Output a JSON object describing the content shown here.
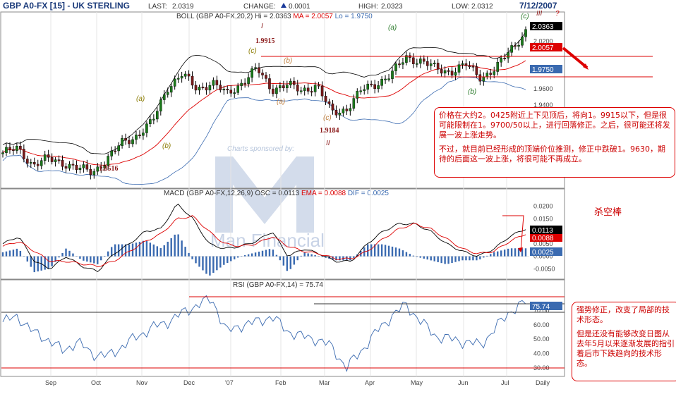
{
  "header": {
    "title": "GBP A0-FX [15] - UK STERLING",
    "last_label": "LAST:",
    "last": "2.0319",
    "change_label": "CHANGE:",
    "change": "0.0001",
    "high_label": "HIGH:",
    "high": "2.0323",
    "low_label": "LOW:",
    "low": "2.0312",
    "date": "7/12/2007"
  },
  "watermark": {
    "sponsor": "Charts sponsored by:",
    "brand": "Man Financial"
  },
  "panels": {
    "price": {
      "legend_prefix": "BOLL (GBP A0-FX,20,2)",
      "hi_label": "Hi = 2.0363",
      "ma_label": "MA = 2.0057",
      "lo_label": "Lo = 1.9750",
      "last_tag": "2.0363",
      "ma_tag": "2.0057",
      "lo_tag": "1.9750"
    },
    "macd": {
      "legend_prefix": "MACD (GBP A0-FX,12,26,9)",
      "osc_label": "OSC = 0.0113",
      "ema_label": "EMA = 0.0088",
      "dif_label": "DIF = 0.0025",
      "osc_tag": "0.0113",
      "ema_tag": "0.0088",
      "dif_tag": "0.0025"
    },
    "rsi": {
      "legend": "RSI (GBP A0-FX,14) = 75.74",
      "tag": "75.74"
    }
  },
  "annotations": {
    "waves": [
      {
        "text": "I",
        "color": "#8b1a1a"
      },
      {
        "text": "II",
        "color": "#8b1a1a"
      },
      {
        "text": "III",
        "color": "#8b1a1a"
      },
      {
        "text": "?",
        "color": "#c00"
      },
      {
        "text": "(a)",
        "color": "#8a7a00"
      },
      {
        "text": "(b)",
        "color": "#8a7a00"
      },
      {
        "text": "(c)",
        "color": "#8a7a00"
      },
      {
        "text": "(a)",
        "color": "#c08040"
      },
      {
        "text": "(b)",
        "color": "#c08040"
      },
      {
        "text": "(c)",
        "color": "#c08040"
      },
      {
        "text": "(a)",
        "color": "#2a7a2a"
      },
      {
        "text": "(b)",
        "color": "#2a7a2a"
      },
      {
        "text": "(c)",
        "color": "#2a7a2a"
      }
    ],
    "levels": [
      "1.8516",
      "1.9915",
      "1.9184"
    ],
    "note_main_p1": "价格在大约2。0425附近上下见顶后，将向1。9915以下，但是很可能限制在1。9700/50以上，进行回落修正。之后，很可能还将发展一波上涨走势。",
    "note_main_p2": "不过，就目前已经形成的顶端价位推测，修正中跌破1。9630，期待的后面这一波上涨，将很可能不再成立。",
    "kill_bar": "杀空棒",
    "note_rsi_p1": "强势修正，改变了局部的技术形态。",
    "note_rsi_p2": "但是还没有能够改变日图从去年5月以来逐渐发展的指引着后市下跌趋向的技术形态。"
  },
  "chart_data": [
    {
      "type": "candlestick",
      "title": "BOLL (GBP A0-FX,20,2)",
      "x_ticks": [
        "Sep",
        "Oct",
        "Nov",
        "Dec",
        "'07",
        "Feb",
        "Mar",
        "Apr",
        "May",
        "Jun",
        "Jul",
        "Daily"
      ],
      "y_ticks": [
        1.94,
        1.96,
        2.02
      ],
      "ylim": [
        1.84,
        2.045
      ],
      "close_path": [
        {
          "x": "Sep-01",
          "y": 1.88
        },
        {
          "x": "Sep-10",
          "y": 1.885
        },
        {
          "x": "Sep-18",
          "y": 1.865
        },
        {
          "x": "Sep-25",
          "y": 1.872
        },
        {
          "x": "Oct-03",
          "y": 1.868
        },
        {
          "x": "Oct-11",
          "y": 1.86
        },
        {
          "x": "Oct-18",
          "y": 1.856
        },
        {
          "x": "Oct-25",
          "y": 1.872
        },
        {
          "x": "Nov-01",
          "y": 1.893
        },
        {
          "x": "Nov-10",
          "y": 1.902
        },
        {
          "x": "Nov-20",
          "y": 1.918
        },
        {
          "x": "Nov-29",
          "y": 1.962
        },
        {
          "x": "Dec-05",
          "y": 1.978
        },
        {
          "x": "Dec-12",
          "y": 1.96
        },
        {
          "x": "Dec-22",
          "y": 1.968
        },
        {
          "x": "Jan-02",
          "y": 1.953
        },
        {
          "x": "Jan-10",
          "y": 1.968
        },
        {
          "x": "Jan-18",
          "y": 1.985
        },
        {
          "x": "Jan-26",
          "y": 1.96
        },
        {
          "x": "Feb-05",
          "y": 1.965
        },
        {
          "x": "Feb-15",
          "y": 1.958
        },
        {
          "x": "Feb-26",
          "y": 1.965
        },
        {
          "x": "Mar-05",
          "y": 1.93
        },
        {
          "x": "Mar-14",
          "y": 1.935
        },
        {
          "x": "Mar-26",
          "y": 1.958
        },
        {
          "x": "Apr-05",
          "y": 1.967
        },
        {
          "x": "Apr-16",
          "y": 1.978
        },
        {
          "x": "Apr-24",
          "y": 2.0
        },
        {
          "x": "May-03",
          "y": 1.995
        },
        {
          "x": "May-15",
          "y": 1.985
        },
        {
          "x": "May-25",
          "y": 1.982
        },
        {
          "x": "Jun-05",
          "y": 1.99
        },
        {
          "x": "Jun-14",
          "y": 1.975
        },
        {
          "x": "Jun-22",
          "y": 1.985
        },
        {
          "x": "Jul-02",
          "y": 2.01
        },
        {
          "x": "Jul-12",
          "y": 2.032
        }
      ],
      "series": [
        {
          "name": "Hi",
          "last": 2.0363
        },
        {
          "name": "MA",
          "last": 2.0057
        },
        {
          "name": "Lo",
          "last": 1.975
        }
      ],
      "marked_levels": [
        1.8516,
        1.9915,
        1.9184
      ]
    },
    {
      "type": "line",
      "title": "MACD (GBP A0-FX,12,26,9)",
      "y_ticks": [
        0.02,
        0.015,
        0.005,
        0.0,
        -0.005
      ],
      "ylim": [
        -0.008,
        0.023
      ],
      "series": [
        {
          "name": "OSC",
          "last": 0.0113,
          "values": [
            0.005,
            0.008,
            -0.002,
            -0.005,
            0.0,
            -0.004,
            -0.006,
            0.001,
            0.005,
            0.01,
            0.011,
            0.021,
            0.015,
            0.005,
            0.003,
            0.004,
            0.006,
            0.01,
            0.0,
            0.003,
            0.001,
            -0.002,
            -0.002,
            0.005,
            0.01,
            0.013,
            0.013,
            0.01,
            0.005,
            0.002,
            0.0,
            0.003,
            0.008,
            0.011
          ]
        },
        {
          "name": "EMA",
          "last": 0.0088,
          "values": [
            0.004,
            0.006,
            0.002,
            -0.002,
            -0.002,
            -0.003,
            -0.004,
            -0.002,
            0.002,
            0.006,
            0.009,
            0.015,
            0.016,
            0.01,
            0.005,
            0.004,
            0.005,
            0.008,
            0.004,
            0.002,
            0.001,
            -0.001,
            -0.001,
            0.002,
            0.007,
            0.011,
            0.013,
            0.011,
            0.007,
            0.003,
            0.001,
            0.002,
            0.006,
            0.009
          ]
        },
        {
          "name": "DIF",
          "last": 0.0025
        }
      ]
    },
    {
      "type": "line",
      "title": "RSI (GBP A0-FX,14)",
      "y_ticks": [
        30,
        40,
        50,
        60,
        70
      ],
      "ylim": [
        25,
        85
      ],
      "series": [
        {
          "name": "RSI",
          "last": 75.74,
          "values": [
            62,
            66,
            55,
            50,
            42,
            48,
            40,
            38,
            45,
            52,
            58,
            62,
            68,
            74,
            78,
            55,
            60,
            62,
            66,
            56,
            52,
            50,
            45,
            30,
            42,
            55,
            66,
            74,
            62,
            52,
            50,
            48,
            46,
            58,
            70,
            75.74
          ]
        }
      ],
      "reference_lines": [
        70,
        30
      ]
    }
  ]
}
